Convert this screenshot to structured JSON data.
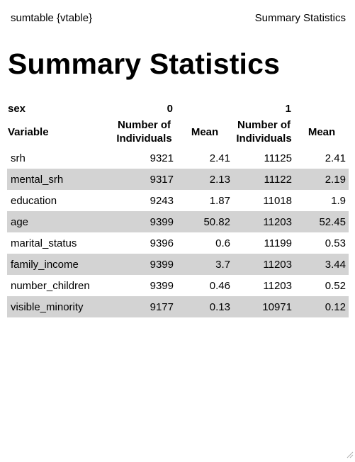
{
  "header": {
    "left_text": "sumtable {vtable}",
    "right_text": "Summary Statistics"
  },
  "page": {
    "title": "Summary Statistics"
  },
  "table": {
    "group_label": "sex",
    "groups": [
      "0",
      "1"
    ],
    "columns": [
      "Variable",
      "Number of Individuals",
      "Mean",
      "Number of Individuals",
      "Mean"
    ],
    "rows": [
      {
        "variable": "srh",
        "n0": "9321",
        "mean0": "2.41",
        "n1": "11125",
        "mean1": "2.41"
      },
      {
        "variable": "mental_srh",
        "n0": "9317",
        "mean0": "2.13",
        "n1": "11122",
        "mean1": "2.19"
      },
      {
        "variable": "education",
        "n0": "9243",
        "mean0": "1.87",
        "n1": "11018",
        "mean1": "1.9"
      },
      {
        "variable": "age",
        "n0": "9399",
        "mean0": "50.82",
        "n1": "11203",
        "mean1": "52.45"
      },
      {
        "variable": "marital_status",
        "n0": "9396",
        "mean0": "0.6",
        "n1": "11199",
        "mean1": "0.53"
      },
      {
        "variable": "family_income",
        "n0": "9399",
        "mean0": "3.7",
        "n1": "11203",
        "mean1": "3.44"
      },
      {
        "variable": "number_children",
        "n0": "9399",
        "mean0": "0.46",
        "n1": "11203",
        "mean1": "0.52"
      },
      {
        "variable": "visible_minority",
        "n0": "9177",
        "mean0": "0.13",
        "n1": "10971",
        "mean1": "0.12"
      }
    ]
  },
  "colors": {
    "row_shade": "#d3d3d3",
    "background": "#ffffff",
    "text": "#000000"
  },
  "icons": {
    "resize": "resize-grip-icon"
  }
}
